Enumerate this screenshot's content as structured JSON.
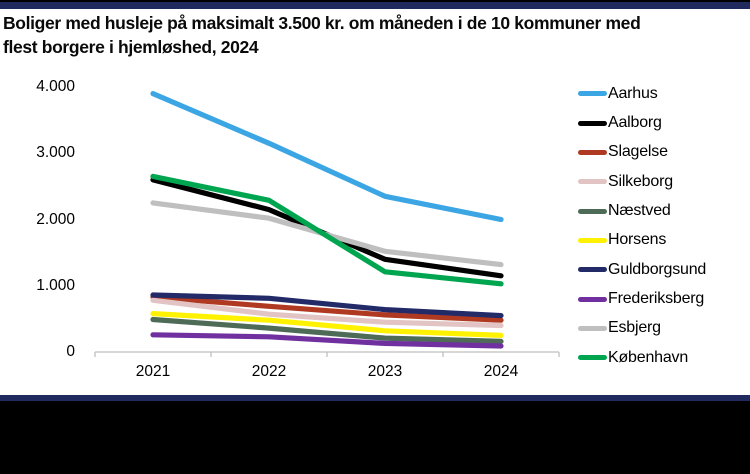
{
  "title_lines": [
    "Boliger med husleje på maksimalt 3.500 kr. om måneden i de 10 kommuner med",
    "flest borgere i hjemløshed, 2024"
  ],
  "colors": {
    "frame": "#000000",
    "accent_bar": "#212a5e",
    "background": "#ffffff",
    "axis_line": "#bfbfbf",
    "text": "#000000"
  },
  "chart_data": {
    "type": "line",
    "title": "Boliger med husleje på maksimalt 3.500 kr. om måneden i de 10 kommuner med flest borgere i hjemløshed, 2024",
    "categories": [
      "2021",
      "2022",
      "2023",
      "2024"
    ],
    "series": [
      {
        "name": "Aarhus",
        "color": "#3ba6e3",
        "values": [
          3900,
          3150,
          2350,
          2000
        ]
      },
      {
        "name": "Aalborg",
        "color": "#000000",
        "values": [
          2600,
          2150,
          1400,
          1150
        ]
      },
      {
        "name": "Slagelse",
        "color": "#b03a21",
        "values": [
          830,
          690,
          560,
          480
        ]
      },
      {
        "name": "Silkeborg",
        "color": "#e2c4c4",
        "values": [
          780,
          570,
          450,
          400
        ]
      },
      {
        "name": "Næstved",
        "color": "#4e6b58",
        "values": [
          490,
          360,
          210,
          160
        ]
      },
      {
        "name": "Horsens",
        "color": "#fff200",
        "values": [
          580,
          480,
          320,
          250
        ]
      },
      {
        "name": "Guldborgsund",
        "color": "#222a68",
        "values": [
          860,
          810,
          640,
          550
        ]
      },
      {
        "name": "Frederiksberg",
        "color": "#7030a0",
        "values": [
          260,
          230,
          130,
          90
        ]
      },
      {
        "name": "Esbjerg",
        "color": "#bfbfbf",
        "values": [
          2250,
          2020,
          1520,
          1320
        ]
      },
      {
        "name": "København",
        "color": "#00a550",
        "values": [
          2650,
          2290,
          1210,
          1030
        ]
      }
    ],
    "y_ticks": [
      "4.000",
      "3.000",
      "2.000",
      "1.000",
      "0"
    ],
    "y_tick_values": [
      4000,
      3000,
      2000,
      1000,
      0
    ],
    "ylim": [
      0,
      4000
    ],
    "xlabel": "",
    "ylabel": "",
    "grid": false,
    "legend_position": "right"
  }
}
